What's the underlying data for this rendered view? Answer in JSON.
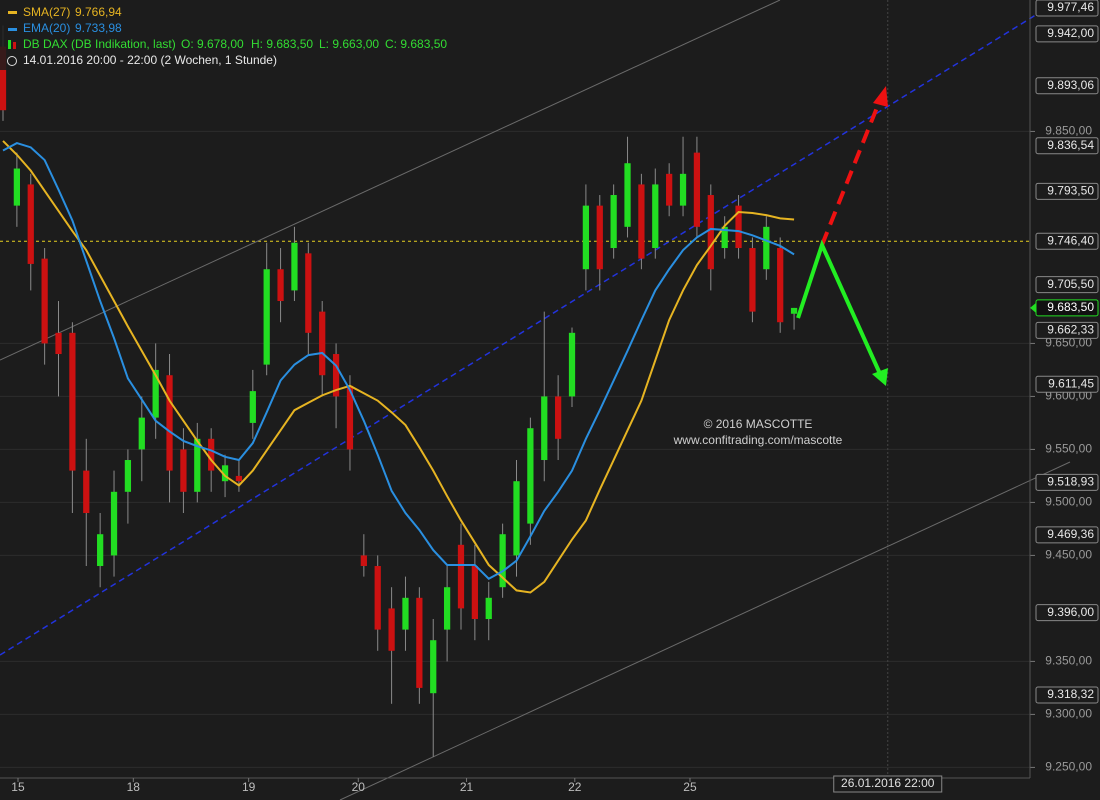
{
  "chart_data": {
    "type": "candlestick",
    "header": {
      "sma_name": "SMA(27)",
      "sma_value": "9.766,94",
      "ema_name": "EMA(20)",
      "ema_value": "9.733,98",
      "instrument": "DB DAX (DB Indikation, last)",
      "open": "O: 9.678,00",
      "high": "H: 9.683,50",
      "low": "L: 9.663,00",
      "close": "C: 9.683,50",
      "period": "14.01.2016 20:00 - 22:00 (2 Wochen, 1 Stunde)"
    },
    "annotations": [
      "© 2016 MASCOTTE",
      "www.confitrading.com/mascotte"
    ],
    "x": [
      0,
      1,
      2,
      3,
      4,
      5,
      6,
      7,
      8,
      9,
      10,
      11,
      12,
      13,
      14,
      15,
      16,
      17,
      18,
      19,
      20,
      21,
      22,
      23,
      24,
      25,
      26,
      27,
      28,
      29,
      30,
      31,
      32,
      33,
      34,
      35,
      36,
      37,
      38,
      39,
      40,
      41,
      42,
      43,
      44,
      45,
      46,
      47,
      48,
      49,
      50,
      51,
      52,
      53,
      54,
      55,
      56,
      57
    ],
    "open": [
      9930,
      9780,
      9800,
      9730,
      9660,
      9660,
      9530,
      9440,
      9450,
      9510,
      9550,
      9580,
      9620,
      9550,
      9510,
      9560,
      9520,
      9525,
      9575,
      9630,
      9720,
      9700,
      9735,
      9680,
      9640,
      9610,
      9450,
      9440,
      9400,
      9380,
      9410,
      9320,
      9380,
      9460,
      9440,
      9390,
      9420,
      9450,
      9480,
      9540,
      9600,
      9600,
      9720,
      9780,
      9740,
      9760,
      9800,
      9740,
      9810,
      9780,
      9830,
      9790,
      9740,
      9780,
      9740,
      9720,
      9740,
      9678
    ],
    "high": [
      9950,
      9830,
      9810,
      9740,
      9690,
      9670,
      9560,
      9490,
      9530,
      9550,
      9600,
      9650,
      9640,
      9570,
      9575,
      9570,
      9545,
      9540,
      9625,
      9745,
      9740,
      9760,
      9745,
      9690,
      9650,
      9620,
      9470,
      9450,
      9420,
      9430,
      9420,
      9390,
      9440,
      9480,
      9460,
      9425,
      9480,
      9540,
      9580,
      9680,
      9620,
      9665,
      9800,
      9790,
      9800,
      9845,
      9810,
      9815,
      9820,
      9845,
      9845,
      9800,
      9770,
      9790,
      9750,
      9770,
      9750,
      9683.5
    ],
    "low": [
      9860,
      9760,
      9700,
      9630,
      9600,
      9490,
      9440,
      9420,
      9430,
      9480,
      9520,
      9560,
      9500,
      9490,
      9500,
      9510,
      9505,
      9510,
      9560,
      9620,
      9670,
      9690,
      9640,
      9600,
      9570,
      9530,
      9430,
      9360,
      9310,
      9360,
      9310,
      9260,
      9350,
      9380,
      9370,
      9370,
      9410,
      9430,
      9460,
      9520,
      9540,
      9590,
      9700,
      9700,
      9730,
      9750,
      9720,
      9730,
      9770,
      9770,
      9750,
      9700,
      9730,
      9730,
      9670,
      9710,
      9660,
      9663
    ],
    "close": [
      9870,
      9815,
      9725,
      9650,
      9640,
      9530,
      9490,
      9470,
      9510,
      9540,
      9580,
      9625,
      9530,
      9510,
      9560,
      9530,
      9535,
      9520,
      9605,
      9720,
      9690,
      9745,
      9660,
      9620,
      9600,
      9550,
      9440,
      9380,
      9360,
      9410,
      9325,
      9370,
      9420,
      9400,
      9390,
      9410,
      9470,
      9520,
      9570,
      9600,
      9560,
      9660,
      9780,
      9720,
      9790,
      9820,
      9730,
      9800,
      9780,
      9810,
      9760,
      9720,
      9760,
      9740,
      9680,
      9760,
      9670,
      9683.5
    ],
    "up_color": "#22dd22",
    "down_color": "#cc1111",
    "series": [
      {
        "name": "SMA(27)",
        "color": "#e6b422",
        "values": [
          9841,
          9828,
          9813,
          9794,
          9775,
          9756,
          9738,
          9714,
          9690,
          9666,
          9643,
          9620,
          9596,
          9577,
          9558,
          9540,
          9525,
          9516,
          9530,
          9549,
          9568,
          9587,
          9594,
          9601,
          9606,
          9610,
          9603,
          9596,
          9585,
          9573,
          9552,
          9530,
          9506,
          9483,
          9462,
          9441,
          9429,
          9417,
          9415,
          9425,
          9445,
          9465,
          9483,
          9512,
          9540,
          9568,
          9596,
          9634,
          9672,
          9700,
          9724,
          9742,
          9761,
          9774,
          9773,
          9771,
          9768,
          9766.94
        ]
      },
      {
        "name": "EMA(20)",
        "color": "#2a8fe0",
        "values": [
          9832,
          9839,
          9835,
          9823,
          9795,
          9766,
          9728,
          9690,
          9655,
          9617,
          9597,
          9577,
          9567,
          9558,
          9553,
          9549,
          9543,
          9540,
          9556,
          9585,
          9615,
          9630,
          9639,
          9641,
          9629,
          9606,
          9577,
          9545,
          9511,
          9490,
          9474,
          9455,
          9441,
          9441,
          9441,
          9428,
          9435,
          9445,
          9468,
          9492,
          9510,
          9530,
          9560,
          9587,
          9615,
          9643,
          9672,
          9700,
          9720,
          9738,
          9750,
          9758,
          9757,
          9756,
          9752,
          9747,
          9742,
          9733.98
        ]
      }
    ],
    "xlim": [
      0,
      74
    ],
    "xticks": [
      {
        "value": 1.08,
        "label": "15"
      },
      {
        "value": 9.39,
        "label": "18"
      },
      {
        "value": 17.7,
        "label": "19"
      },
      {
        "value": 25.6,
        "label": "20"
      },
      {
        "value": 33.4,
        "label": "21"
      },
      {
        "value": 41.2,
        "label": "22"
      },
      {
        "value": 49.5,
        "label": "25"
      }
    ],
    "crosshair": {
      "value": 63.75,
      "label": "26.01.2016 22:00"
    },
    "ylim": [
      9240,
      9974
    ],
    "yticks": [
      {
        "value": 9250,
        "label": "9.250,00"
      },
      {
        "value": 9300,
        "label": "9.300,00"
      },
      {
        "value": 9350,
        "label": "9.350,00"
      },
      {
        "value": 9450,
        "label": "9.450,00"
      },
      {
        "value": 9500,
        "label": "9.500,00"
      },
      {
        "value": 9550,
        "label": "9.550,00"
      },
      {
        "value": 9600,
        "label": "9.600,00"
      },
      {
        "value": 9650,
        "label": "9.650,00"
      },
      {
        "value": 9850,
        "label": "9.850,00"
      }
    ],
    "grid": true,
    "price_labels": [
      {
        "value": 9977.46,
        "label": "9.977,46"
      },
      {
        "value": 9942,
        "label": "9.942,00"
      },
      {
        "value": 9893.06,
        "label": "9.893,06"
      },
      {
        "value": 9836.54,
        "label": "9.836,54"
      },
      {
        "value": 9793.5,
        "label": "9.793,50"
      },
      {
        "value": 9705.5,
        "label": "9.705,50"
      },
      {
        "value": 9662.33,
        "label": "9.662,33"
      },
      {
        "value": 9611.45,
        "label": "9.611,45"
      },
      {
        "value": 9518.93,
        "label": "9.518,93"
      },
      {
        "value": 9469.36,
        "label": "9.469,36"
      },
      {
        "value": 9396,
        "label": "9.396,00"
      },
      {
        "value": 9318.32,
        "label": "9.318,32"
      }
    ],
    "reference_line": {
      "value": 9746.4,
      "label": "9.746,40",
      "color": "#e6d020"
    },
    "current_price": {
      "value": 9683.5,
      "label": "9.683,50",
      "color": "#22dd22"
    }
  }
}
